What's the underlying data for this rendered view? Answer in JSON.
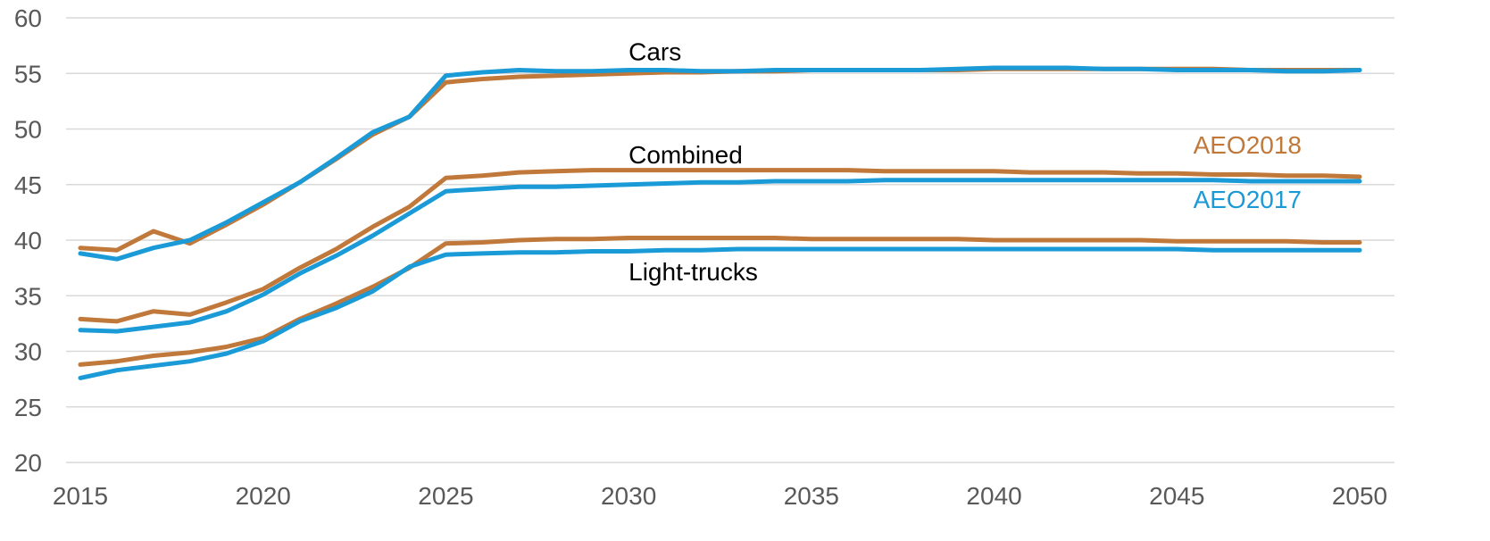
{
  "chart_data": {
    "type": "line",
    "title": "",
    "xlabel": "",
    "ylabel": "",
    "xlim": [
      2015,
      2050
    ],
    "ylim": [
      20,
      60
    ],
    "x_ticks": [
      "2015",
      "2020",
      "2025",
      "2030",
      "2035",
      "2040",
      "2045",
      "2050"
    ],
    "y_ticks": [
      "20",
      "25",
      "30",
      "35",
      "40",
      "45",
      "50",
      "55",
      "60"
    ],
    "grid": true,
    "colors": {
      "AEO2018": "#c0793a",
      "AEO2017": "#1a9ad6"
    },
    "x": [
      2015,
      2016,
      2017,
      2018,
      2019,
      2020,
      2021,
      2022,
      2023,
      2024,
      2025,
      2026,
      2027,
      2028,
      2029,
      2030,
      2031,
      2032,
      2033,
      2034,
      2035,
      2036,
      2037,
      2038,
      2039,
      2040,
      2041,
      2042,
      2043,
      2044,
      2045,
      2046,
      2047,
      2048,
      2049,
      2050
    ],
    "series": [
      {
        "group": "Cars",
        "name": "AEO2018",
        "values": [
          39.3,
          39.1,
          40.8,
          39.7,
          41.4,
          43.2,
          45.2,
          47.3,
          49.5,
          51.1,
          54.2,
          54.5,
          54.7,
          54.8,
          54.9,
          55.0,
          55.1,
          55.1,
          55.2,
          55.2,
          55.3,
          55.3,
          55.3,
          55.3,
          55.3,
          55.4,
          55.4,
          55.4,
          55.4,
          55.4,
          55.4,
          55.4,
          55.3,
          55.3,
          55.3,
          55.3
        ]
      },
      {
        "group": "Cars",
        "name": "AEO2017",
        "values": [
          38.8,
          38.3,
          39.3,
          40.0,
          41.6,
          43.4,
          45.2,
          47.4,
          49.7,
          51.1,
          54.8,
          55.1,
          55.3,
          55.2,
          55.2,
          55.3,
          55.3,
          55.2,
          55.2,
          55.3,
          55.3,
          55.3,
          55.3,
          55.3,
          55.4,
          55.5,
          55.5,
          55.5,
          55.4,
          55.4,
          55.3,
          55.3,
          55.3,
          55.2,
          55.2,
          55.3
        ]
      },
      {
        "group": "Combined",
        "name": "AEO2018",
        "values": [
          32.9,
          32.7,
          33.6,
          33.3,
          34.4,
          35.6,
          37.5,
          39.2,
          41.2,
          43.0,
          45.6,
          45.8,
          46.1,
          46.2,
          46.3,
          46.3,
          46.3,
          46.3,
          46.3,
          46.3,
          46.3,
          46.3,
          46.2,
          46.2,
          46.2,
          46.2,
          46.1,
          46.1,
          46.1,
          46.0,
          46.0,
          45.9,
          45.9,
          45.8,
          45.8,
          45.7
        ]
      },
      {
        "group": "Combined",
        "name": "AEO2017",
        "values": [
          31.9,
          31.8,
          32.2,
          32.6,
          33.6,
          35.1,
          37.0,
          38.6,
          40.4,
          42.4,
          44.4,
          44.6,
          44.8,
          44.8,
          44.9,
          45.0,
          45.1,
          45.2,
          45.2,
          45.3,
          45.3,
          45.3,
          45.4,
          45.4,
          45.4,
          45.4,
          45.4,
          45.4,
          45.4,
          45.4,
          45.4,
          45.4,
          45.3,
          45.3,
          45.3,
          45.3
        ]
      },
      {
        "group": "Light-trucks",
        "name": "AEO2018",
        "values": [
          28.8,
          29.1,
          29.6,
          29.9,
          30.4,
          31.2,
          32.9,
          34.3,
          35.8,
          37.5,
          39.7,
          39.8,
          40.0,
          40.1,
          40.1,
          40.2,
          40.2,
          40.2,
          40.2,
          40.2,
          40.1,
          40.1,
          40.1,
          40.1,
          40.1,
          40.0,
          40.0,
          40.0,
          40.0,
          40.0,
          39.9,
          39.9,
          39.9,
          39.9,
          39.8,
          39.8
        ]
      },
      {
        "group": "Light-trucks",
        "name": "AEO2017",
        "values": [
          27.6,
          28.3,
          28.7,
          29.1,
          29.8,
          30.9,
          32.7,
          33.9,
          35.4,
          37.6,
          38.7,
          38.8,
          38.9,
          38.9,
          39.0,
          39.0,
          39.1,
          39.1,
          39.2,
          39.2,
          39.2,
          39.2,
          39.2,
          39.2,
          39.2,
          39.2,
          39.2,
          39.2,
          39.2,
          39.2,
          39.2,
          39.1,
          39.1,
          39.1,
          39.1,
          39.1
        ]
      }
    ],
    "annotations": [
      {
        "text": "Cars",
        "x": 2030,
        "y": 56.2
      },
      {
        "text": "Combined",
        "x": 2030,
        "y": 46.9
      },
      {
        "text": "Light-trucks",
        "x": 2030,
        "y": 36.4
      }
    ],
    "legend": {
      "placement": "right",
      "entries": [
        {
          "label": "AEO2018",
          "color": "#c0793a",
          "y": 47.8
        },
        {
          "label": "AEO2017",
          "color": "#1a9ad6",
          "y": 42.9
        }
      ]
    }
  }
}
